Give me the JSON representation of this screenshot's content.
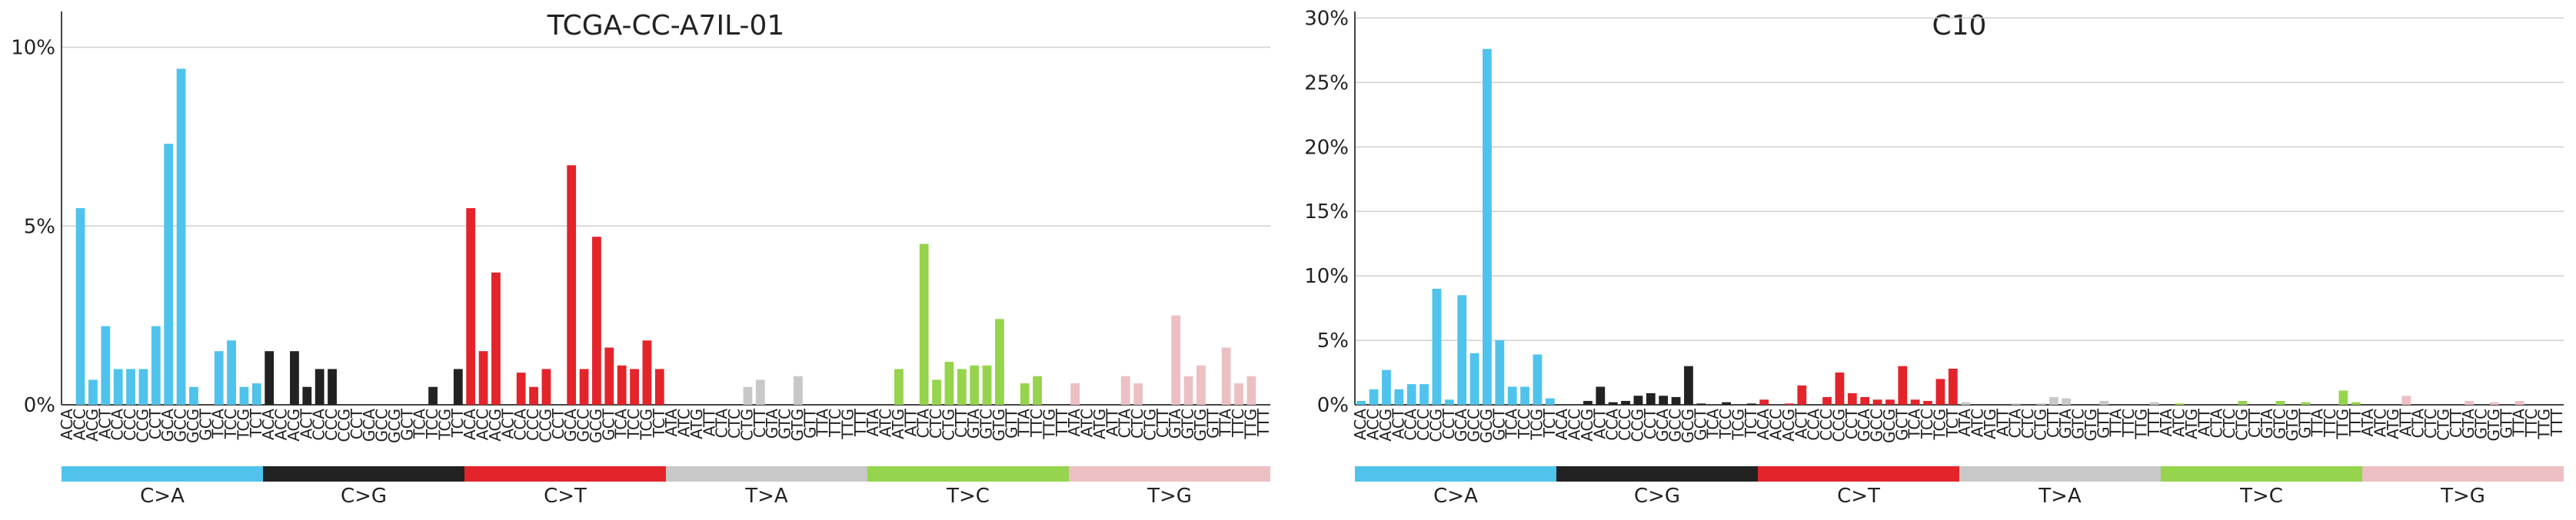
{
  "bands": [
    {
      "label": "C>A",
      "color": "#4FC3EC"
    },
    {
      "label": "C>G",
      "color": "#222222"
    },
    {
      "label": "C>T",
      "color": "#E3242B"
    },
    {
      "label": "T>A",
      "color": "#C8C8C8"
    },
    {
      "label": "T>C",
      "color": "#95D44C"
    },
    {
      "label": "T>G",
      "color": "#ECC0C3"
    }
  ],
  "chart_data": [
    {
      "type": "bar",
      "title": "TCGA-CC-A7IL-01",
      "xlabel": "",
      "ylabel": "",
      "ylim": [
        0,
        11
      ],
      "yticks": [
        0,
        5,
        10
      ],
      "ytick_labels": [
        "0%",
        "5%",
        "10%"
      ],
      "grid": true,
      "categories": [
        "ACA",
        "ACC",
        "ACG",
        "ACT",
        "CCA",
        "CCC",
        "CCG",
        "CCT",
        "GCA",
        "GCC",
        "GCG",
        "GCT",
        "TCA",
        "TCC",
        "TCG",
        "TCT",
        "ACA",
        "ACC",
        "ACG",
        "ACT",
        "CCA",
        "CCC",
        "CCG",
        "CCT",
        "GCA",
        "GCC",
        "GCG",
        "GCT",
        "TCA",
        "TCC",
        "TCG",
        "TCT",
        "ACA",
        "ACC",
        "ACG",
        "ACT",
        "CCA",
        "CCC",
        "CCG",
        "CCT",
        "GCA",
        "GCC",
        "GCG",
        "GCT",
        "TCA",
        "TCC",
        "TCG",
        "TCT",
        "ATA",
        "ATC",
        "ATG",
        "ATT",
        "CTA",
        "CTC",
        "CTG",
        "CTT",
        "GTA",
        "GTC",
        "GTG",
        "GTT",
        "TTA",
        "TTC",
        "TTG",
        "TTT",
        "ATA",
        "ATC",
        "ATG",
        "ATT",
        "CTA",
        "CTC",
        "CTG",
        "CTT",
        "GTA",
        "GTC",
        "GTG",
        "GTT",
        "TTA",
        "TTC",
        "TTG",
        "TTT",
        "ATA",
        "ATC",
        "ATG",
        "ATT",
        "CTA",
        "CTC",
        "CTG",
        "CTT",
        "GTA",
        "GTC",
        "GTG",
        "GTT",
        "TTA",
        "TTC",
        "TTG",
        "TTT"
      ],
      "values": [
        0,
        5.5,
        0.7,
        2.2,
        1.0,
        1.0,
        1.0,
        2.2,
        7.3,
        9.4,
        0.5,
        0,
        1.5,
        1.8,
        0.5,
        0.6,
        1.5,
        0,
        1.5,
        0.5,
        1.0,
        1.0,
        0,
        0,
        0,
        0,
        0,
        0,
        0,
        0.5,
        0,
        1.0,
        5.5,
        1.5,
        3.7,
        0,
        0.9,
        0.5,
        1.0,
        0,
        6.7,
        1.0,
        4.7,
        1.6,
        1.1,
        1.0,
        1.8,
        1.0,
        0,
        0,
        0,
        0,
        0,
        0,
        0.5,
        0.7,
        0,
        0,
        0.8,
        0,
        0,
        0,
        0,
        0,
        0,
        0,
        1.0,
        0,
        4.5,
        0.7,
        1.2,
        1.0,
        1.1,
        1.1,
        2.4,
        0,
        0.6,
        0.8,
        0,
        0,
        0.6,
        0,
        0,
        0,
        0.8,
        0.6,
        0,
        0,
        2.5,
        0.8,
        1.1,
        0,
        1.6,
        0.6,
        0.8,
        0
      ]
    },
    {
      "type": "bar",
      "title": "C10",
      "xlabel": "",
      "ylabel": "",
      "ylim": [
        0,
        30.5
      ],
      "yticks": [
        0,
        5,
        10,
        15,
        20,
        25,
        30
      ],
      "ytick_labels": [
        "0%",
        "5%",
        "10%",
        "15%",
        "20%",
        "25%",
        "30%"
      ],
      "grid": true,
      "categories": [
        "ACA",
        "ACC",
        "ACG",
        "ACT",
        "CCA",
        "CCC",
        "CCG",
        "CCT",
        "GCA",
        "GCC",
        "GCG",
        "GCT",
        "TCA",
        "TCC",
        "TCG",
        "TCT",
        "ACA",
        "ACC",
        "ACG",
        "ACT",
        "CCA",
        "CCC",
        "CCG",
        "CCT",
        "GCA",
        "GCC",
        "GCG",
        "GCT",
        "TCA",
        "TCC",
        "TCG",
        "TCT",
        "ACA",
        "ACC",
        "ACG",
        "ACT",
        "CCA",
        "CCC",
        "CCG",
        "CCT",
        "GCA",
        "GCC",
        "GCG",
        "GCT",
        "TCA",
        "TCC",
        "TCG",
        "TCT",
        "ATA",
        "ATC",
        "ATG",
        "ATT",
        "CTA",
        "CTC",
        "CTG",
        "CTT",
        "GTA",
        "GTC",
        "GTG",
        "GTT",
        "TTA",
        "TTC",
        "TTG",
        "TTT",
        "ATA",
        "ATC",
        "ATG",
        "ATT",
        "CTA",
        "CTC",
        "CTG",
        "CTT",
        "GTA",
        "GTC",
        "GTG",
        "GTT",
        "TTA",
        "TTC",
        "TTG",
        "TTT",
        "ATA",
        "ATC",
        "ATG",
        "ATT",
        "CTA",
        "CTC",
        "CTG",
        "CTT",
        "GTA",
        "GTC",
        "GTG",
        "GTT",
        "TTA",
        "TTC",
        "TTG",
        "TTT"
      ],
      "values": [
        0.3,
        1.2,
        2.7,
        1.2,
        1.6,
        1.6,
        9.0,
        0.4,
        8.5,
        4.0,
        27.6,
        5.0,
        1.4,
        1.4,
        3.9,
        0.5,
        0,
        0,
        0.3,
        1.4,
        0.2,
        0.3,
        0.7,
        0.9,
        0.7,
        0.6,
        3.0,
        0.1,
        0,
        0.2,
        0,
        0.1,
        0.4,
        0,
        0.1,
        1.5,
        0,
        0.6,
        2.5,
        0.9,
        0.6,
        0.4,
        0.4,
        3.0,
        0.4,
        0.3,
        2.0,
        2.8,
        0.2,
        0,
        0,
        0,
        0.1,
        0,
        0.1,
        0.6,
        0.5,
        0,
        0,
        0.3,
        0,
        0,
        0,
        0.2,
        0,
        0.1,
        0,
        0,
        0,
        0,
        0.3,
        0,
        0,
        0.3,
        0,
        0.2,
        0,
        0,
        1.1,
        0.2,
        0,
        0,
        0,
        0.7,
        0,
        0,
        0,
        0,
        0.3,
        0,
        0.2,
        0,
        0.3,
        0,
        0,
        0
      ]
    }
  ]
}
